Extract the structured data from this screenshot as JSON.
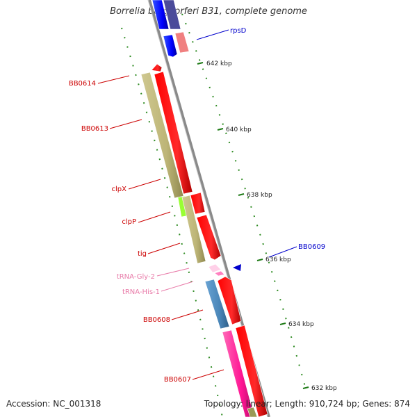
{
  "title": "Borrelia burgdorferi B31, complete genome",
  "footer": {
    "accession": "Accession: NC_001318",
    "summary": "Topology: linear; Length: 910,724 bp; Genes: 874"
  },
  "scale_labels": [
    "642 kbp",
    "640 kbp",
    "638 kbp",
    "636 kbp",
    "634 kbp",
    "632 kbp"
  ],
  "gene_labels": [
    {
      "text": "rpsD",
      "color": "#0000cc"
    },
    {
      "text": "BB0614",
      "color": "#cc0000"
    },
    {
      "text": "BB0613",
      "color": "#cc0000"
    },
    {
      "text": "clpX",
      "color": "#cc0000"
    },
    {
      "text": "clpP",
      "color": "#cc0000"
    },
    {
      "text": "tig",
      "color": "#cc0000"
    },
    {
      "text": "BB0609",
      "color": "#0000cc"
    },
    {
      "text": "tRNA-Gly-2",
      "color": "#e87aa8"
    },
    {
      "text": "tRNA-His-1",
      "color": "#e87aa8"
    },
    {
      "text": "BB0608",
      "color": "#cc0000"
    },
    {
      "text": "BB0607",
      "color": "#cc0000"
    }
  ],
  "colors": {
    "backbone": "#8a8a8a",
    "tick_dots": "#2e8b22",
    "cds_forward": "#ff0000",
    "cds_reverse": "#0000ff",
    "cog_olive": "#b8b070",
    "cog_lime": "#99ff33",
    "cog_steel": "#4a86b8",
    "cog_pink": "#ff1493",
    "cog_salmon": "#f08080"
  }
}
